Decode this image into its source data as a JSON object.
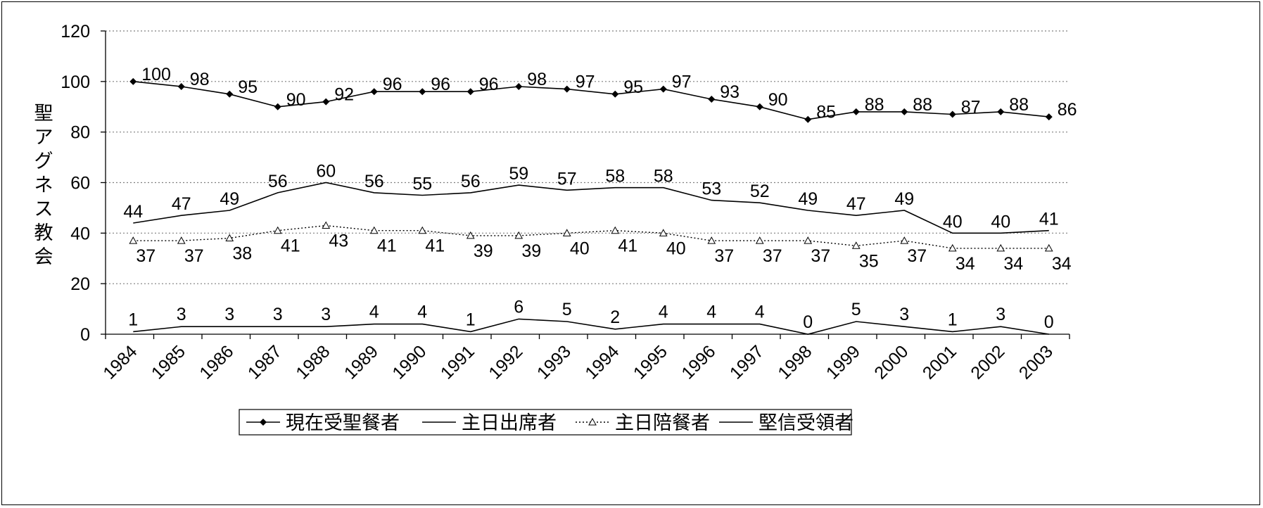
{
  "chart_data": {
    "type": "line",
    "title": "",
    "xlabel": "",
    "ylabel": "聖アグネス教会",
    "ylim": [
      0,
      120
    ],
    "yticks": [
      0,
      20,
      40,
      60,
      80,
      100,
      120
    ],
    "grid": true,
    "legend_position": "bottom",
    "categories": [
      "1984",
      "1985",
      "1986",
      "1987",
      "1988",
      "1989",
      "1990",
      "1991",
      "1992",
      "1993",
      "1994",
      "1995",
      "1996",
      "1997",
      "1998",
      "1999",
      "2000",
      "2001",
      "2002",
      "2003"
    ],
    "series": [
      {
        "name": "現在受聖餐者",
        "style": "solid-diamond",
        "color": "#000000",
        "values": [
          100,
          98,
          95,
          90,
          92,
          96,
          96,
          96,
          98,
          97,
          95,
          97,
          93,
          90,
          85,
          88,
          88,
          87,
          88,
          86
        ]
      },
      {
        "name": "主日出席者",
        "style": "solid",
        "color": "#000000",
        "values": [
          44,
          47,
          49,
          56,
          60,
          56,
          55,
          56,
          59,
          57,
          58,
          58,
          53,
          52,
          49,
          47,
          49,
          40,
          40,
          41
        ]
      },
      {
        "name": "主日陪餐者",
        "style": "dotted-triangle",
        "color": "#000000",
        "values": [
          37,
          37,
          38,
          41,
          43,
          41,
          41,
          39,
          39,
          40,
          41,
          40,
          37,
          37,
          37,
          35,
          37,
          34,
          34,
          34
        ]
      },
      {
        "name": "堅信受領者",
        "style": "solid",
        "color": "#000000",
        "values": [
          1,
          3,
          3,
          3,
          3,
          4,
          4,
          1,
          6,
          5,
          2,
          4,
          4,
          4,
          0,
          5,
          3,
          1,
          3,
          0
        ]
      }
    ]
  }
}
